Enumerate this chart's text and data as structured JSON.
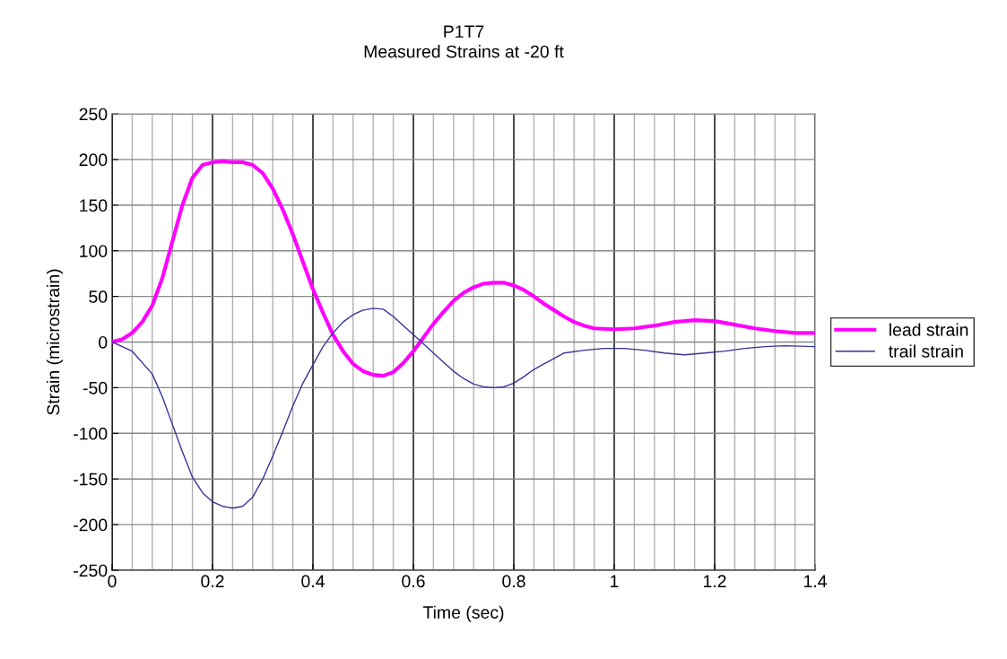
{
  "chart_data": {
    "type": "line",
    "title": "P1T7\nMeasured Strains at -20 ft",
    "xlabel": "Time (sec)",
    "ylabel": "Strain (microstrain)",
    "xlim": [
      0,
      1.4
    ],
    "ylim": [
      -250,
      250
    ],
    "xticks": [
      0,
      {
        "value": 0.04,
        "label": null
      },
      {
        "value": 0.08,
        "label": null
      },
      {
        "value": 0.12,
        "label": null
      },
      {
        "value": 0.16,
        "label": null
      },
      0.2,
      {
        "value": 0.24,
        "label": null
      },
      {
        "value": 0.28,
        "label": null
      },
      {
        "value": 0.32,
        "label": null
      },
      {
        "value": 0.36,
        "label": null
      },
      0.4,
      {
        "value": 0.44,
        "label": null
      },
      {
        "value": 0.48,
        "label": null
      },
      {
        "value": 0.52,
        "label": null
      },
      {
        "value": 0.56,
        "label": null
      },
      0.6,
      {
        "value": 0.64,
        "label": null
      },
      {
        "value": 0.68,
        "label": null
      },
      {
        "value": 0.72,
        "label": null
      },
      {
        "value": 0.76,
        "label": null
      },
      0.8,
      {
        "value": 0.84,
        "label": null
      },
      {
        "value": 0.88,
        "label": null
      },
      {
        "value": 0.92,
        "label": null
      },
      {
        "value": 0.96,
        "label": null
      },
      1,
      {
        "value": 1.04,
        "label": null
      },
      {
        "value": 1.08,
        "label": null
      },
      {
        "value": 1.12,
        "label": null
      },
      {
        "value": 1.16,
        "label": null
      },
      1.2,
      {
        "value": 1.24,
        "label": null
      },
      {
        "value": 1.28,
        "label": null
      },
      {
        "value": 1.32,
        "label": null
      },
      {
        "value": 1.36,
        "label": null
      },
      1.4
    ],
    "yticks": [
      -250,
      -200,
      -150,
      -100,
      -50,
      0,
      50,
      100,
      150,
      200,
      250
    ],
    "grid": true,
    "legend": "right",
    "marker": "none",
    "line_style": "solid",
    "series": [
      {
        "name": "lead strain",
        "color": "#ff00ff",
        "x": [
          0,
          0.02,
          0.04,
          0.06,
          0.08,
          0.1,
          0.12,
          0.14,
          0.16,
          0.18,
          0.2,
          0.22,
          0.24,
          0.26,
          0.28,
          0.3,
          0.32,
          0.34,
          0.36,
          0.38,
          0.4,
          0.42,
          0.44,
          0.46,
          0.48,
          0.5,
          0.52,
          0.54,
          0.56,
          0.58,
          0.6,
          0.62,
          0.64,
          0.66,
          0.68,
          0.7,
          0.72,
          0.74,
          0.76,
          0.78,
          0.8,
          0.82,
          0.84,
          0.86,
          0.88,
          0.9,
          0.92,
          0.94,
          0.96,
          1.0,
          1.04,
          1.08,
          1.12,
          1.16,
          1.2,
          1.24,
          1.28,
          1.32,
          1.36,
          1.4
        ],
        "values": [
          0,
          3,
          10,
          22,
          40,
          70,
          110,
          150,
          180,
          194,
          197,
          198,
          197,
          197,
          194,
          185,
          168,
          145,
          118,
          88,
          58,
          32,
          8,
          -10,
          -24,
          -32,
          -36,
          -37,
          -33,
          -23,
          -10,
          5,
          20,
          33,
          45,
          54,
          60,
          64,
          65,
          65,
          62,
          57,
          50,
          42,
          35,
          28,
          22,
          18,
          15,
          14,
          15,
          18,
          22,
          24,
          23,
          19,
          15,
          12,
          10,
          10
        ]
      },
      {
        "name": "trail strain",
        "color": "#333399",
        "x": [
          0,
          0.04,
          0.08,
          0.1,
          0.12,
          0.14,
          0.16,
          0.18,
          0.2,
          0.22,
          0.24,
          0.26,
          0.28,
          0.3,
          0.32,
          0.34,
          0.36,
          0.38,
          0.4,
          0.42,
          0.44,
          0.46,
          0.48,
          0.5,
          0.52,
          0.54,
          0.56,
          0.58,
          0.6,
          0.62,
          0.64,
          0.66,
          0.68,
          0.7,
          0.72,
          0.74,
          0.76,
          0.78,
          0.8,
          0.82,
          0.84,
          0.86,
          0.88,
          0.9,
          0.94,
          0.98,
          1.02,
          1.06,
          1.1,
          1.14,
          1.18,
          1.22,
          1.26,
          1.3,
          1.34,
          1.4
        ],
        "values": [
          0,
          -10,
          -35,
          -60,
          -90,
          -120,
          -148,
          -165,
          -175,
          -180,
          -182,
          -180,
          -170,
          -150,
          -125,
          -98,
          -70,
          -45,
          -25,
          -5,
          10,
          22,
          30,
          35,
          37,
          36,
          28,
          18,
          8,
          -2,
          -12,
          -22,
          -32,
          -40,
          -46,
          -49,
          -50,
          -49,
          -45,
          -38,
          -30,
          -24,
          -18,
          -12,
          -9,
          -7,
          -7,
          -9,
          -12,
          -14,
          -12,
          -10,
          -7,
          -5,
          -4,
          -5
        ]
      }
    ]
  }
}
